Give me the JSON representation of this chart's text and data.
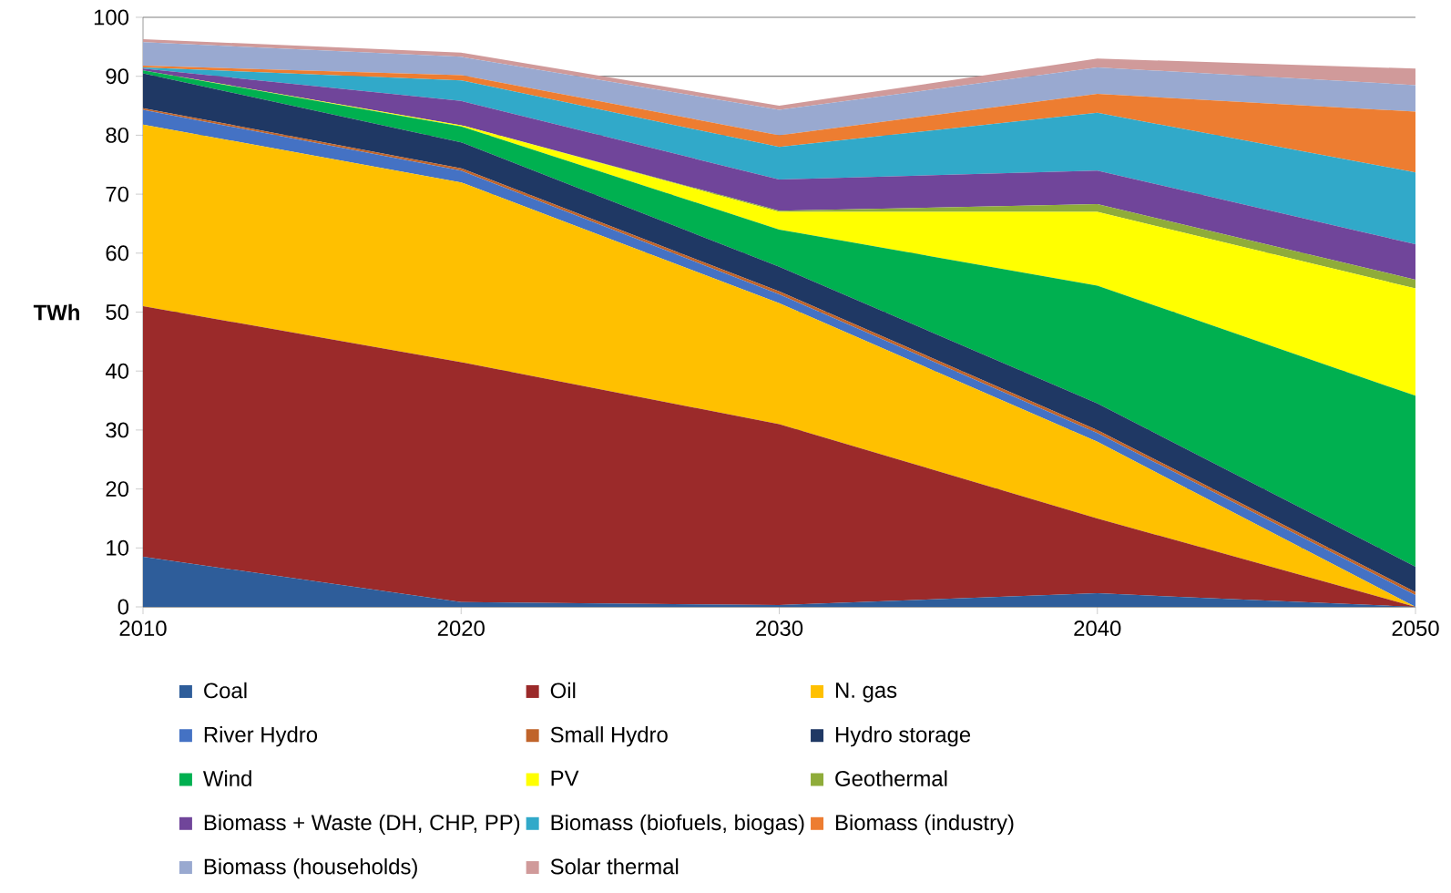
{
  "chart_data": {
    "type": "area",
    "stacked": true,
    "ylabel": "TWh",
    "x": [
      2010,
      2020,
      2030,
      2040,
      2050
    ],
    "xlim": [
      2010,
      2050
    ],
    "xticks": [
      2010,
      2020,
      2030,
      2040,
      2050
    ],
    "ylim": [
      0,
      100
    ],
    "yticks": [
      0,
      10,
      20,
      30,
      40,
      50,
      60,
      70,
      80,
      90,
      100
    ],
    "grid": "y",
    "legend": "bottom",
    "series": [
      {
        "name": "Coal",
        "color": "#2e5d9a",
        "values": [
          8.5,
          0.8,
          0.3,
          2.3,
          0
        ]
      },
      {
        "name": "Oil",
        "color": "#9b2a2a",
        "values": [
          42.5,
          40.7,
          30.7,
          12.7,
          0
        ]
      },
      {
        "name": "N. gas",
        "color": "#ffc000",
        "values": [
          30.8,
          30.5,
          20.5,
          13,
          0
        ]
      },
      {
        "name": "River Hydro",
        "color": "#4472c4",
        "values": [
          2.5,
          2,
          1.5,
          1.5,
          2
        ]
      },
      {
        "name": "Small Hydro",
        "color": "#c0642a",
        "values": [
          0.3,
          0.4,
          0.5,
          0.5,
          0.5
        ]
      },
      {
        "name": "Hydro storage",
        "color": "#1f3864",
        "values": [
          5.9,
          4.4,
          4.2,
          4.5,
          4.3
        ]
      },
      {
        "name": "Wind",
        "color": "#00b050",
        "values": [
          0.5,
          2.7,
          6.3,
          20,
          29
        ]
      },
      {
        "name": "PV",
        "color": "#ffff00",
        "values": [
          0,
          0.2,
          3,
          12.5,
          18.2
        ]
      },
      {
        "name": "Geothermal",
        "color": "#8fac3a",
        "values": [
          0,
          0,
          0.2,
          1.3,
          1.5
        ]
      },
      {
        "name": "Biomass + Waste (DH, CHP, PP)",
        "color": "#70459a",
        "values": [
          0.3,
          4.1,
          5.3,
          5.7,
          6
        ]
      },
      {
        "name": "Biomass (biofuels, biogas)",
        "color": "#31a9c9",
        "values": [
          0.2,
          3.5,
          5.5,
          9.8,
          12.2
        ]
      },
      {
        "name": "Biomass (industry)",
        "color": "#ed7d31",
        "values": [
          0.3,
          0.9,
          2,
          3.2,
          10.3
        ]
      },
      {
        "name": "Biomass (households)",
        "color": "#99a9d0",
        "values": [
          4,
          3.1,
          4.3,
          4.5,
          4.5
        ]
      },
      {
        "name": "Solar thermal",
        "color": "#d09a9a",
        "values": [
          0.5,
          0.7,
          0.7,
          1.5,
          2.8
        ]
      }
    ]
  }
}
